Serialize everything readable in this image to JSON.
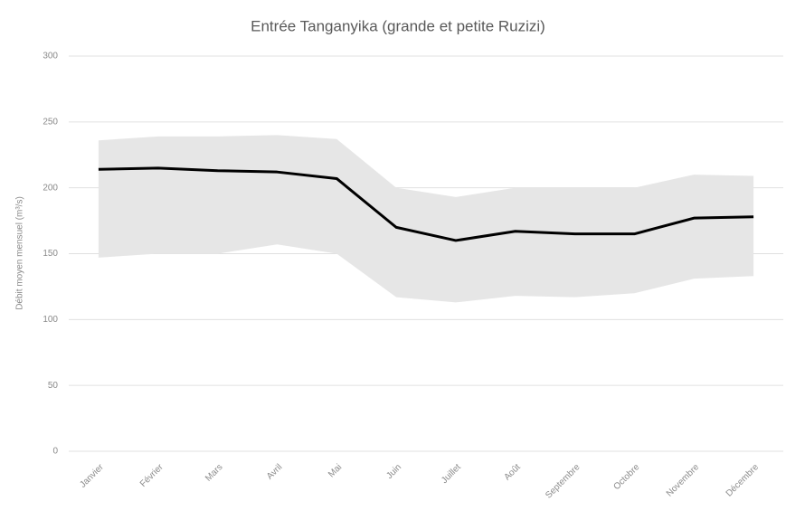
{
  "chart_data": {
    "type": "line",
    "title": "Entrée Tanganyika (grande et petite Ruzizi)",
    "y_label": "Débit moyen mensuel (m³/s)",
    "categories": [
      "Janvier",
      "Février",
      "Mars",
      "Avril",
      "Mai",
      "Juin",
      "Juillet",
      "Août",
      "Septembre",
      "Octobre",
      "Novembre",
      "Décembre"
    ],
    "series": [
      {
        "color": "#000000",
        "values": [
          214,
          215,
          213,
          212,
          207,
          170,
          160,
          167,
          165,
          165,
          177,
          178
        ]
      }
    ],
    "band": {
      "color": "#e6e6e6",
      "upper": [
        236,
        239,
        239,
        240,
        237,
        200,
        193,
        200,
        200,
        200,
        210,
        209
      ],
      "lower": [
        147,
        150,
        150,
        157,
        150,
        117,
        113,
        118,
        117,
        120,
        131,
        133
      ]
    },
    "ylim": [
      0,
      300
    ],
    "yticks": [
      0,
      50,
      100,
      150,
      200,
      250,
      300
    ],
    "grid": true
  }
}
